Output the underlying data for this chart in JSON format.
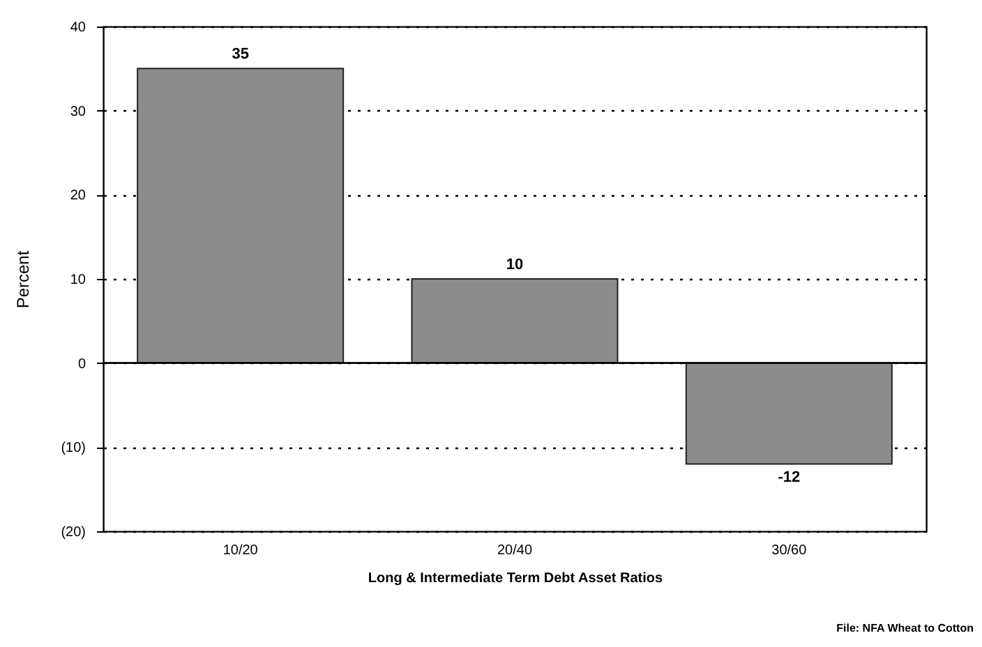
{
  "chart_data": {
    "type": "bar",
    "xlabel": "Long & Intermediate Term Debt Asset Ratios",
    "ylabel": "Percent",
    "categories": [
      "10/20",
      "20/40",
      "30/60"
    ],
    "values": [
      35,
      10,
      -12
    ],
    "color": "#8c8c8c",
    "data_labels": true,
    "ylim": [
      -20,
      40
    ],
    "yticks": [
      {
        "value": -20,
        "label": "(20)"
      },
      {
        "value": -10,
        "label": "(10)"
      },
      0,
      10,
      20,
      30,
      40
    ],
    "grid": "y",
    "ref_lines": [
      {
        "axis": "y",
        "value": 0,
        "color": "#000000"
      }
    ],
    "annotations": [
      "File: NFA Wheat to Cotton"
    ]
  }
}
